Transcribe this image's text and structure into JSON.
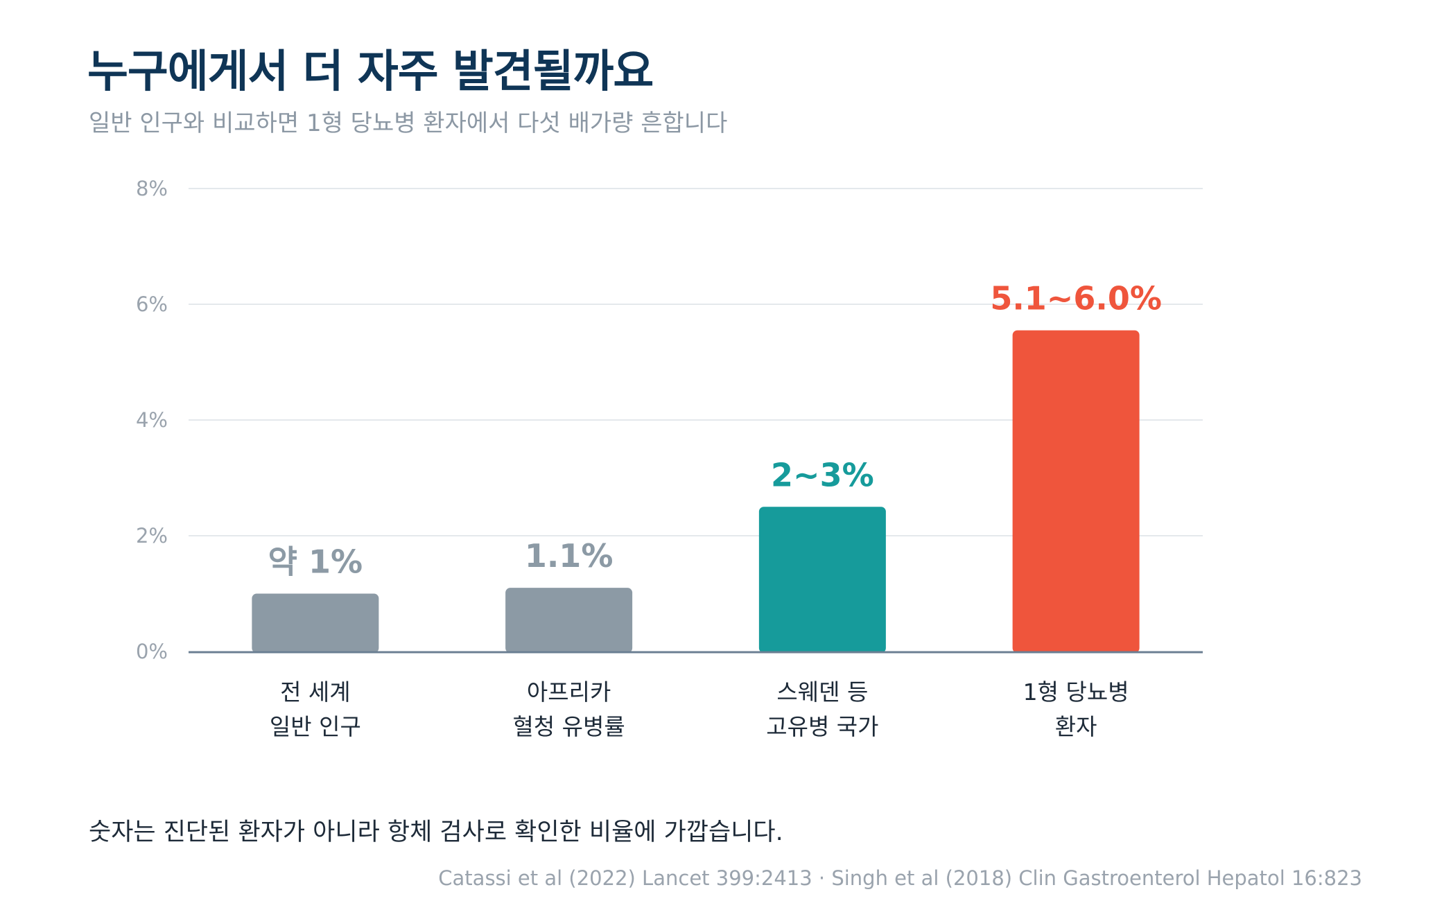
{
  "header": {
    "title": "누구에게서 더 자주 발견될까요",
    "subtitle": "일반 인구와 비교하면 1형 당뇨병 환자에서 다섯 배가량 흔합니다"
  },
  "footer": {
    "note": "숫자는 진단된 환자가 아니라 항체 검사로 확인한 비율에 가깝습니다.",
    "source": "Catassi et al (2022) Lancet 399:2413 · Singh et al (2018) Clin Gastroenterol Hepatol 16:823"
  },
  "colors": {
    "gray": "#8c9aa5",
    "teal": "#169b9b",
    "red": "#ef553c",
    "grid": "#e4e8ec",
    "baseline": "#6b7f93",
    "title": "#0f3556"
  },
  "chart_data": {
    "type": "bar",
    "title": "누구에게서 더 자주 발견될까요",
    "subtitle": "일반 인구와 비교하면 1형 당뇨병 환자에서 다섯 배가량 흔합니다",
    "categories": [
      [
        "전 세계",
        "일반 인구"
      ],
      [
        "아프리카",
        "혈청 유병률"
      ],
      [
        "스웨덴 등",
        "고유병 국가"
      ],
      [
        "1형 당뇨병",
        "환자"
      ]
    ],
    "values": [
      1.0,
      1.1,
      2.5,
      5.55
    ],
    "value_labels": [
      "약 1%",
      "1.1%",
      "2~3%",
      "5.1~6.0%"
    ],
    "bar_colors": [
      "#8c9aa5",
      "#8c9aa5",
      "#169b9b",
      "#ef553c"
    ],
    "ylim": [
      0,
      8
    ],
    "yticks": [
      0,
      2,
      4,
      6,
      8
    ],
    "ytick_labels": [
      "0%",
      "2%",
      "4%",
      "6%",
      "8%"
    ],
    "grid": true,
    "legend": "none"
  }
}
